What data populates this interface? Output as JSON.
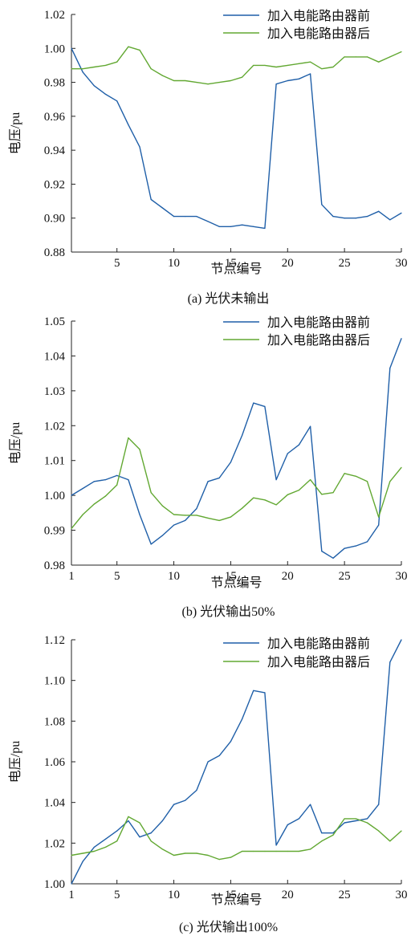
{
  "chart_data": [
    {
      "type": "line",
      "caption": "(a) 光伏未输出",
      "xlabel": "节点编号",
      "ylabel": "电压/pu",
      "xlim": [
        1,
        30
      ],
      "ylim": [
        0.88,
        1.02
      ],
      "xticks": [
        5,
        10,
        15,
        20,
        25,
        30
      ],
      "xtick_labels": [
        "5",
        "10",
        "15",
        "20",
        "25",
        "30"
      ],
      "yticks": [
        0.88,
        0.9,
        0.92,
        0.94,
        0.96,
        0.98,
        1.0,
        1.02
      ],
      "ytick_labels": [
        "0.88",
        "0.90",
        "0.92",
        "0.94",
        "0.96",
        "0.98",
        "1.00",
        "1.02"
      ],
      "legend_position": "top-right",
      "grid": false,
      "x": [
        1,
        2,
        3,
        4,
        5,
        6,
        7,
        8,
        9,
        10,
        11,
        12,
        13,
        14,
        15,
        16,
        17,
        18,
        19,
        20,
        21,
        22,
        23,
        24,
        25,
        26,
        27,
        28,
        29,
        30
      ],
      "series": [
        {
          "name": "加入电能路由器前",
          "color": "#1f5fa8",
          "values": [
            1.0,
            0.986,
            0.978,
            0.973,
            0.969,
            0.955,
            0.942,
            0.911,
            0.906,
            0.901,
            0.901,
            0.901,
            0.898,
            0.895,
            0.895,
            0.896,
            0.895,
            0.894,
            0.979,
            0.981,
            0.982,
            0.985,
            0.908,
            0.901,
            0.9,
            0.9,
            0.901,
            0.904,
            0.899,
            0.903
          ]
        },
        {
          "name": "加入电能路由器后",
          "color": "#62a832",
          "values": [
            0.988,
            0.988,
            0.989,
            0.99,
            0.992,
            1.001,
            0.999,
            0.988,
            0.984,
            0.981,
            0.981,
            0.98,
            0.979,
            0.98,
            0.981,
            0.983,
            0.99,
            0.99,
            0.989,
            0.99,
            0.991,
            0.992,
            0.988,
            0.989,
            0.995,
            0.995,
            0.995,
            0.992,
            0.995,
            0.998
          ]
        }
      ]
    },
    {
      "type": "line",
      "caption": "(b) 光伏输出50%",
      "xlabel": "节点编号",
      "ylabel": "电压/pu",
      "xlim": [
        1,
        30
      ],
      "ylim": [
        0.98,
        1.05
      ],
      "xticks": [
        1,
        5,
        10,
        15,
        20,
        25,
        30
      ],
      "xtick_labels": [
        "1",
        "5",
        "10",
        "15",
        "20",
        "25",
        "30"
      ],
      "yticks": [
        0.98,
        0.99,
        1.0,
        1.01,
        1.02,
        1.03,
        1.04,
        1.05
      ],
      "ytick_labels": [
        "0.98",
        "0.99",
        "1.00",
        "1.01",
        "1.02",
        "1.03",
        "1.04",
        "1.05"
      ],
      "legend_position": "top-right",
      "grid": false,
      "x": [
        1,
        2,
        3,
        4,
        5,
        6,
        7,
        8,
        9,
        10,
        11,
        12,
        13,
        14,
        15,
        16,
        17,
        18,
        19,
        20,
        21,
        22,
        23,
        24,
        25,
        26,
        27,
        28,
        29,
        30
      ],
      "series": [
        {
          "name": "加入电能路由器前",
          "color": "#1f5fa8",
          "values": [
            1.0,
            1.002,
            1.004,
            1.0045,
            1.0057,
            1.0045,
            0.9945,
            0.986,
            0.9885,
            0.9915,
            0.9928,
            0.9962,
            1.004,
            1.005,
            1.0095,
            1.0172,
            1.0265,
            1.0255,
            1.0045,
            1.012,
            1.0145,
            1.0198,
            0.984,
            0.982,
            0.9848,
            0.9855,
            0.9867,
            0.9915,
            1.0365,
            1.045
          ]
        },
        {
          "name": "加入电能路由器后",
          "color": "#62a832",
          "values": [
            0.9905,
            0.9945,
            0.9975,
            0.9998,
            1.003,
            1.0165,
            1.0132,
            1.0008,
            0.997,
            0.9945,
            0.9943,
            0.9943,
            0.9935,
            0.9928,
            0.9938,
            0.9963,
            0.9993,
            0.9987,
            0.9973,
            1.0002,
            1.0015,
            1.0045,
            1.0003,
            1.0008,
            1.0063,
            1.0055,
            1.004,
            0.9938,
            1.004,
            1.008
          ]
        }
      ]
    },
    {
      "type": "line",
      "caption": "(c) 光伏输出100%",
      "xlabel": "节点编号",
      "ylabel": "电压/pu",
      "xlim": [
        1,
        30
      ],
      "ylim": [
        1.0,
        1.12
      ],
      "xticks": [
        1,
        5,
        10,
        15,
        20,
        25,
        30
      ],
      "xtick_labels": [
        "1",
        "5",
        "10",
        "15",
        "20",
        "25",
        "30"
      ],
      "yticks": [
        1.0,
        1.02,
        1.04,
        1.06,
        1.08,
        1.1,
        1.12
      ],
      "ytick_labels": [
        "1.00",
        "1.02",
        "1.04",
        "1.06",
        "1.08",
        "1.10",
        "1.12"
      ],
      "legend_position": "top-right",
      "grid": false,
      "x": [
        1,
        2,
        3,
        4,
        5,
        6,
        7,
        8,
        9,
        10,
        11,
        12,
        13,
        14,
        15,
        16,
        17,
        18,
        19,
        20,
        21,
        22,
        23,
        24,
        25,
        26,
        27,
        28,
        29,
        30
      ],
      "series": [
        {
          "name": "加入电能路由器前",
          "color": "#1f5fa8",
          "values": [
            1.0,
            1.011,
            1.018,
            1.022,
            1.026,
            1.031,
            1.023,
            1.025,
            1.031,
            1.039,
            1.041,
            1.046,
            1.06,
            1.063,
            1.07,
            1.081,
            1.095,
            1.094,
            1.019,
            1.029,
            1.032,
            1.039,
            1.025,
            1.025,
            1.03,
            1.031,
            1.032,
            1.039,
            1.109,
            1.12
          ]
        },
        {
          "name": "加入电能路由器后",
          "color": "#62a832",
          "values": [
            1.014,
            1.015,
            1.016,
            1.018,
            1.021,
            1.033,
            1.03,
            1.021,
            1.017,
            1.014,
            1.015,
            1.015,
            1.014,
            1.012,
            1.013,
            1.016,
            1.016,
            1.016,
            1.016,
            1.016,
            1.016,
            1.017,
            1.021,
            1.024,
            1.032,
            1.032,
            1.03,
            1.026,
            1.021,
            1.026
          ]
        }
      ]
    }
  ]
}
